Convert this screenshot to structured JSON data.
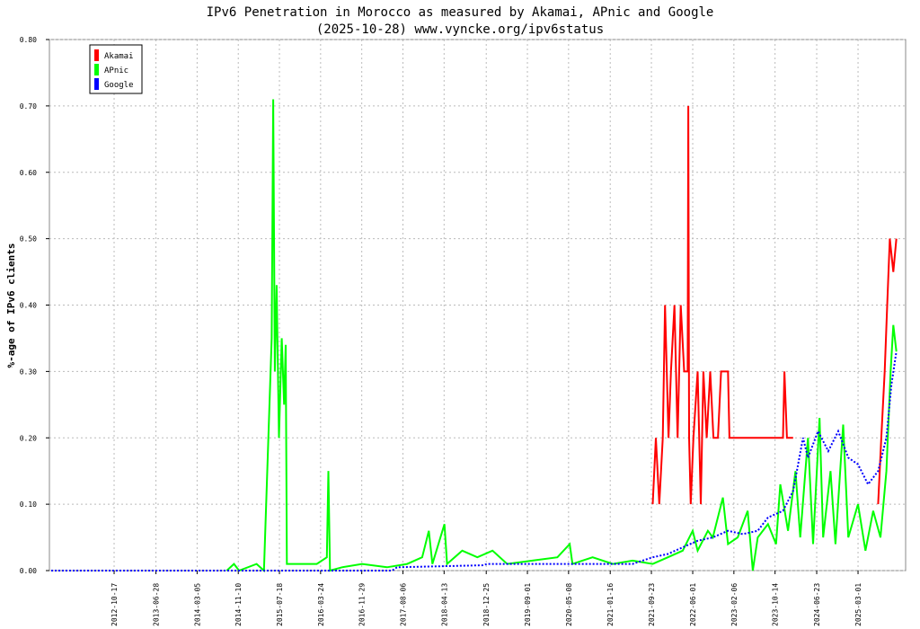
{
  "chart_data": {
    "type": "line",
    "title": "IPv6 Penetration in Morocco as measured by Akamai, APnic and Google",
    "subtitle": "(2025-10-28) www.vyncke.org/ipv6status",
    "y_label": "%-age of IPv6 clients",
    "xlim": [
      "2011-09-20",
      "2025-12-15"
    ],
    "xticks": [
      "2012-10-17",
      "2013-06-28",
      "2014-03-05",
      "2014-11-10",
      "2015-07-18",
      "2016-03-24",
      "2016-11-29",
      "2017-08-06",
      "2018-04-13",
      "2018-12-25",
      "2019-09-01",
      "2020-05-08",
      "2021-01-16",
      "2021-09-23",
      "2022-06-01",
      "2023-02-06",
      "2023-10-14",
      "2024-06-23",
      "2025-03-01"
    ],
    "ylim": [
      0,
      0.8
    ],
    "yticks": [
      {
        "value": 0,
        "label": "0.00"
      },
      {
        "value": 0.1,
        "label": "0.10"
      },
      {
        "value": 0.2,
        "label": "0.20"
      },
      {
        "value": 0.3,
        "label": "0.30"
      },
      {
        "value": 0.4,
        "label": "0.40"
      },
      {
        "value": 0.5,
        "label": "0.50"
      },
      {
        "value": 0.6,
        "label": "0.60"
      },
      {
        "value": 0.7,
        "label": "0.70"
      },
      {
        "value": 0.8,
        "label": "0.80"
      }
    ],
    "grid": true,
    "legend": "top-left",
    "series": [
      {
        "name": "Akamai",
        "color": "#ff0000",
        "dash": false,
        "x": [
          "2021-10-01",
          "2021-10-20",
          "2021-11-10",
          "2021-12-01",
          "2021-12-15",
          "2022-01-05",
          "2022-01-20",
          "2022-02-10",
          "2022-03-01",
          "2022-03-20",
          "2022-04-10",
          "2022-05-01",
          "2022-05-05",
          "2022-05-10",
          "2022-05-20",
          "2022-06-05",
          "2022-07-01",
          "2022-07-20",
          "2022-08-05",
          "2022-08-25",
          "2022-09-15",
          "2022-10-05",
          "2022-11-01",
          "2022-11-20",
          "2023-01-01",
          "2023-01-10",
          "2023-12-01",
          "2023-12-10",
          "2023-12-25",
          "2024-02-01",
          "2024-03-01",
          "2025-07-01",
          "2025-07-20",
          "2025-08-10",
          "2025-08-25",
          "2025-09-10",
          "2025-10-01",
          "2025-10-20"
        ],
        "values": [
          0.1,
          0.2,
          0.1,
          0.2,
          0.4,
          0.2,
          0.3,
          0.4,
          0.2,
          0.4,
          0.3,
          0.3,
          0.7,
          0.2,
          0.1,
          0.2,
          0.3,
          0.1,
          0.3,
          0.2,
          0.3,
          0.2,
          0.2,
          0.3,
          0.3,
          0.2,
          0.2,
          0.3,
          0.2,
          0.2,
          null,
          0.1,
          0.2,
          0.3,
          0.4,
          0.5,
          0.45,
          0.5
        ]
      },
      {
        "name": "APnic",
        "color": "#00ff00",
        "dash": false,
        "x": [
          "2014-09-01",
          "2014-10-15",
          "2014-11-15",
          "2015-03-01",
          "2015-04-15",
          "2015-06-01",
          "2015-06-10",
          "2015-06-20",
          "2015-07-01",
          "2015-07-15",
          "2015-08-01",
          "2015-08-15",
          "2015-08-25",
          "2015-09-01",
          "2015-12-01",
          "2016-03-01",
          "2016-05-01",
          "2016-05-10",
          "2016-05-20",
          "2016-08-01",
          "2016-12-01",
          "2017-05-01",
          "2017-09-01",
          "2017-12-01",
          "2018-01-10",
          "2018-02-01",
          "2018-04-15",
          "2018-05-01",
          "2018-08-01",
          "2018-11-01",
          "2019-02-01",
          "2019-05-01",
          "2019-10-01",
          "2020-03-01",
          "2020-05-15",
          "2020-06-01",
          "2020-10-01",
          "2021-02-01",
          "2021-06-01",
          "2021-10-01",
          "2022-01-01",
          "2022-04-01",
          "2022-06-01",
          "2022-07-01",
          "2022-09-01",
          "2022-10-01",
          "2022-12-01",
          "2023-01-01",
          "2023-03-01",
          "2023-05-01",
          "2023-06-01",
          "2023-07-01",
          "2023-09-01",
          "2023-10-20",
          "2023-11-15",
          "2024-01-01",
          "2024-02-15",
          "2024-03-15",
          "2024-05-01",
          "2024-06-01",
          "2024-07-10",
          "2024-08-01",
          "2024-09-15",
          "2024-10-15",
          "2024-12-01",
          "2025-01-01",
          "2025-03-01",
          "2025-04-15",
          "2025-06-01",
          "2025-07-15",
          "2025-08-20",
          "2025-09-15",
          "2025-10-01",
          "2025-10-20"
        ],
        "values": [
          0,
          0.01,
          0,
          0.01,
          0,
          0.35,
          0.71,
          0.3,
          0.43,
          0.2,
          0.35,
          0.25,
          0.34,
          0.01,
          0.01,
          0.01,
          0.02,
          0.15,
          0,
          0.005,
          0.01,
          0.005,
          0.01,
          0.02,
          0.06,
          0.01,
          0.07,
          0.01,
          0.03,
          0.02,
          0.03,
          0.01,
          0.015,
          0.02,
          0.04,
          0.01,
          0.02,
          0.01,
          0.015,
          0.01,
          0.02,
          0.03,
          0.06,
          0.03,
          0.06,
          0.05,
          0.11,
          0.04,
          0.05,
          0.09,
          0,
          0.05,
          0.07,
          0.04,
          0.13,
          0.06,
          0.15,
          0.05,
          0.2,
          0.04,
          0.23,
          0.05,
          0.15,
          0.04,
          0.22,
          0.05,
          0.1,
          0.03,
          0.09,
          0.05,
          0.15,
          0.3,
          0.37,
          0.33
        ]
      },
      {
        "name": "Google",
        "color": "#0000ff",
        "dash": true,
        "x": [
          "2011-10-01",
          "2017-06-01",
          "2017-07-01",
          "2018-12-01",
          "2019-01-01",
          "2020-06-01",
          "2021-06-01",
          "2021-10-01",
          "2022-01-01",
          "2022-04-01",
          "2022-07-01",
          "2022-10-01",
          "2023-01-01",
          "2023-04-01",
          "2023-07-01",
          "2023-09-01",
          "2023-12-01",
          "2024-02-01",
          "2024-04-01",
          "2024-05-01",
          "2024-07-01",
          "2024-09-01",
          "2024-11-01",
          "2025-01-01",
          "2025-03-01",
          "2025-05-01",
          "2025-07-01",
          "2025-08-20",
          "2025-09-20",
          "2025-10-20"
        ],
        "values": [
          0,
          0,
          0.005,
          0.008,
          0.01,
          0.01,
          0.01,
          0.02,
          0.025,
          0.035,
          0.045,
          0.05,
          0.06,
          0.055,
          0.06,
          0.08,
          0.09,
          0.12,
          0.2,
          0.17,
          0.21,
          0.18,
          0.21,
          0.17,
          0.16,
          0.13,
          0.15,
          0.2,
          0.28,
          0.33
        ]
      }
    ]
  }
}
